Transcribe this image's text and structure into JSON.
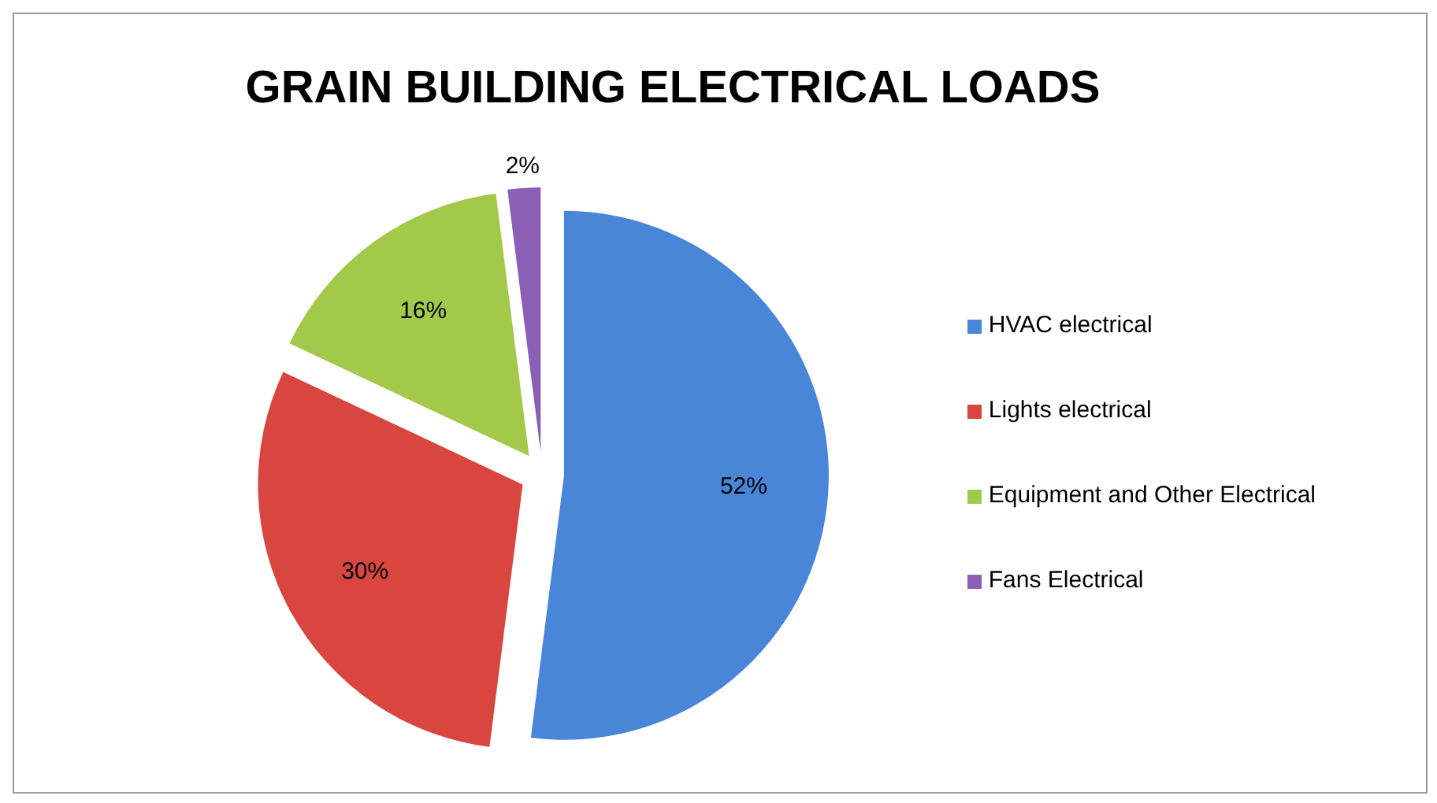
{
  "chart_data": {
    "type": "pie",
    "title": "GRAIN BUILDING ELECTRICAL LOADS",
    "categories": [
      "HVAC electrical",
      "Lights electrical",
      "Equipment and Other Electrical",
      "Fans Electrical"
    ],
    "values": [
      52,
      30,
      16,
      2
    ],
    "colors": [
      "#4a86d8",
      "#d9463f",
      "#a3c94a",
      "#8a5fb5"
    ],
    "value_labels": [
      "52%",
      "30%",
      "16%",
      "2%"
    ],
    "legend": "right"
  }
}
